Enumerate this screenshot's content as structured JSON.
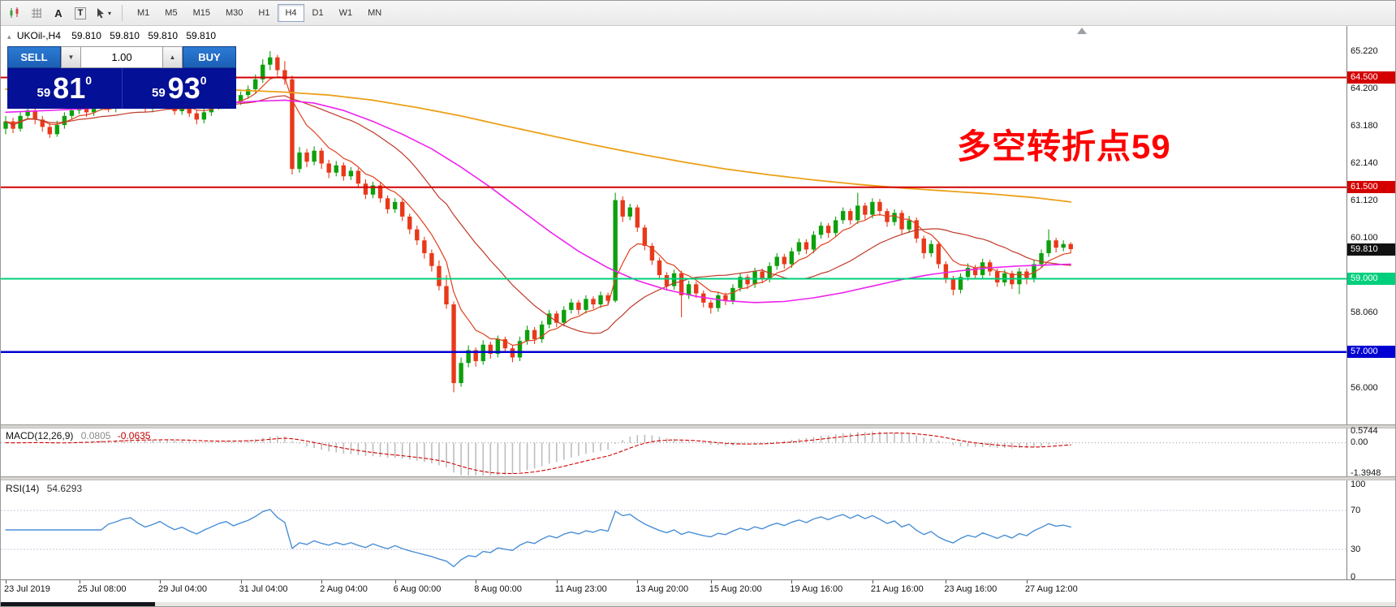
{
  "toolbar": {
    "text_tool_label": "A",
    "label_tool_label": "T",
    "caret": "▾",
    "timeframes": [
      "M1",
      "M5",
      "M15",
      "M30",
      "H1",
      "H4",
      "D1",
      "W1",
      "MN"
    ],
    "active_timeframe": "H4"
  },
  "chart": {
    "header": {
      "expand_icon": "▴",
      "symbol": "UKOil-,H4",
      "o": "59.810",
      "h": "59.810",
      "l": "59.810",
      "c": "59.810"
    },
    "trade_panel": {
      "sell_label": "SELL",
      "buy_label": "BUY",
      "volume": "1.00",
      "spin_down": "▼",
      "spin_up": "▲",
      "sell_price": {
        "big": "59",
        "large": "81",
        "sup": "0"
      },
      "buy_price": {
        "big": "59",
        "large": "93",
        "sup": "0"
      }
    },
    "annotation": {
      "text": "多空转折点59",
      "color": "#ff0000"
    },
    "colors": {
      "up": "#0da00d",
      "down": "#e8391a",
      "ma_orange": "#eca018",
      "ma_magenta": "#ee22ee",
      "ma_fast": "#e0401c",
      "ma_mid": "#c03828"
    },
    "hlines": [
      {
        "price": 64.5,
        "label": "64.500",
        "color": "#d40000",
        "width": 2
      },
      {
        "price": 61.5,
        "label": "61.500",
        "color": "#d40000",
        "width": 2
      },
      {
        "price": 59.0,
        "label": "59.000",
        "color": "#00cf7c",
        "width": 2
      },
      {
        "price": 57.0,
        "label": "57.000",
        "color": "#0000d2",
        "width": 2.5
      }
    ],
    "current_price": {
      "value": 59.81,
      "label": "59.810",
      "bg": "#111111"
    },
    "y_axis": [
      {
        "p": 65.22,
        "t": "65.220"
      },
      {
        "p": 64.2,
        "t": "64.200"
      },
      {
        "p": 63.18,
        "t": "63.180"
      },
      {
        "p": 62.14,
        "t": "62.140"
      },
      {
        "p": 61.12,
        "t": "61.120"
      },
      {
        "p": 60.1,
        "t": "60.100"
      },
      {
        "p": 58.06,
        "t": "58.060"
      },
      {
        "p": 56.0,
        "t": "56.000"
      }
    ],
    "view": {
      "price_top": 65.93,
      "price_bottom": 55.02
    },
    "candles": [
      [
        63.1,
        63.45,
        62.95,
        63.3
      ],
      [
        63.3,
        63.4,
        62.98,
        63.1
      ],
      [
        63.1,
        63.55,
        63.02,
        63.45
      ],
      [
        63.45,
        63.72,
        63.35,
        63.6
      ],
      [
        63.6,
        63.68,
        63.22,
        63.35
      ],
      [
        63.35,
        63.45,
        63.02,
        63.15
      ],
      [
        63.15,
        63.25,
        62.85,
        62.95
      ],
      [
        62.95,
        63.32,
        62.88,
        63.2
      ],
      [
        63.2,
        63.55,
        63.1,
        63.45
      ],
      [
        63.45,
        63.7,
        63.35,
        63.6
      ],
      [
        63.6,
        63.88,
        63.5,
        63.75
      ],
      [
        63.75,
        63.82,
        63.42,
        63.55
      ],
      [
        63.55,
        63.8,
        63.45,
        63.7
      ],
      [
        63.7,
        64.0,
        63.6,
        63.9
      ],
      [
        63.9,
        63.98,
        63.55,
        63.65
      ],
      [
        63.65,
        63.92,
        63.55,
        63.8
      ],
      [
        63.8,
        64.1,
        63.7,
        64.0
      ],
      [
        64.0,
        64.22,
        63.9,
        64.1
      ],
      [
        64.1,
        64.15,
        63.75,
        63.85
      ],
      [
        63.85,
        63.95,
        63.55,
        63.65
      ],
      [
        63.65,
        63.9,
        63.55,
        63.8
      ],
      [
        63.8,
        64.12,
        63.72,
        64.0
      ],
      [
        64.0,
        64.08,
        63.68,
        63.78
      ],
      [
        63.78,
        63.85,
        63.48,
        63.58
      ],
      [
        63.58,
        63.82,
        63.48,
        63.72
      ],
      [
        63.72,
        63.8,
        63.42,
        63.52
      ],
      [
        63.52,
        63.6,
        63.22,
        63.35
      ],
      [
        63.35,
        63.65,
        63.25,
        63.55
      ],
      [
        63.55,
        63.82,
        63.45,
        63.72
      ],
      [
        63.72,
        64.02,
        63.62,
        63.92
      ],
      [
        63.92,
        64.15,
        63.82,
        64.05
      ],
      [
        64.05,
        64.12,
        63.72,
        63.85
      ],
      [
        63.85,
        64.12,
        63.75,
        64.02
      ],
      [
        64.02,
        64.28,
        63.92,
        64.18
      ],
      [
        64.18,
        64.58,
        64.08,
        64.45
      ],
      [
        64.45,
        65.0,
        64.35,
        64.85
      ],
      [
        64.85,
        65.22,
        64.7,
        65.05
      ],
      [
        65.05,
        65.12,
        64.55,
        64.7
      ],
      [
        64.7,
        64.95,
        64.3,
        64.45
      ],
      [
        64.45,
        64.55,
        61.85,
        62.0
      ],
      [
        62.0,
        62.6,
        61.9,
        62.45
      ],
      [
        62.45,
        62.55,
        62.05,
        62.2
      ],
      [
        62.2,
        62.62,
        62.1,
        62.5
      ],
      [
        62.5,
        62.58,
        62.0,
        62.15
      ],
      [
        62.15,
        62.25,
        61.75,
        61.9
      ],
      [
        61.9,
        62.22,
        61.8,
        62.1
      ],
      [
        62.1,
        62.18,
        61.68,
        61.8
      ],
      [
        61.8,
        62.05,
        61.7,
        61.95
      ],
      [
        61.95,
        62.02,
        61.48,
        61.6
      ],
      [
        61.6,
        61.72,
        61.18,
        61.3
      ],
      [
        61.3,
        61.65,
        61.2,
        61.55
      ],
      [
        61.55,
        61.62,
        61.08,
        61.2
      ],
      [
        61.2,
        61.28,
        60.78,
        60.9
      ],
      [
        60.9,
        61.2,
        60.8,
        61.1
      ],
      [
        61.1,
        61.18,
        60.58,
        60.7
      ],
      [
        60.7,
        60.78,
        60.22,
        60.35
      ],
      [
        60.35,
        60.45,
        59.92,
        60.05
      ],
      [
        60.05,
        60.15,
        59.55,
        59.7
      ],
      [
        59.7,
        59.8,
        59.2,
        59.35
      ],
      [
        59.35,
        59.5,
        58.68,
        58.8
      ],
      [
        58.8,
        59.1,
        58.18,
        58.3
      ],
      [
        58.3,
        58.38,
        55.9,
        56.15
      ],
      [
        56.15,
        56.85,
        56.05,
        56.7
      ],
      [
        56.7,
        57.18,
        56.58,
        57.05
      ],
      [
        57.05,
        57.12,
        56.6,
        56.75
      ],
      [
        56.75,
        57.32,
        56.65,
        57.2
      ],
      [
        57.2,
        57.28,
        56.82,
        56.95
      ],
      [
        56.95,
        57.45,
        56.85,
        57.35
      ],
      [
        57.35,
        57.42,
        57.0,
        57.1
      ],
      [
        57.1,
        57.18,
        56.72,
        56.85
      ],
      [
        56.85,
        57.42,
        56.75,
        57.3
      ],
      [
        57.3,
        57.72,
        57.2,
        57.6
      ],
      [
        57.6,
        57.68,
        57.22,
        57.35
      ],
      [
        57.35,
        57.85,
        57.25,
        57.75
      ],
      [
        57.75,
        58.15,
        57.65,
        58.05
      ],
      [
        58.05,
        58.12,
        57.68,
        57.8
      ],
      [
        57.8,
        58.25,
        57.7,
        58.15
      ],
      [
        58.15,
        58.45,
        58.05,
        58.35
      ],
      [
        58.35,
        58.42,
        58.02,
        58.15
      ],
      [
        58.15,
        58.55,
        58.05,
        58.45
      ],
      [
        58.45,
        58.52,
        58.18,
        58.3
      ],
      [
        58.3,
        58.65,
        58.2,
        58.55
      ],
      [
        58.55,
        58.62,
        58.28,
        58.4
      ],
      [
        58.4,
        61.35,
        58.35,
        61.15
      ],
      [
        61.15,
        61.25,
        60.55,
        60.7
      ],
      [
        60.7,
        61.05,
        60.6,
        60.95
      ],
      [
        60.95,
        61.02,
        60.28,
        60.4
      ],
      [
        60.4,
        60.48,
        59.78,
        59.9
      ],
      [
        59.9,
        59.98,
        59.38,
        59.5
      ],
      [
        59.5,
        59.58,
        58.98,
        59.1
      ],
      [
        59.1,
        59.18,
        58.68,
        58.8
      ],
      [
        58.8,
        59.25,
        58.7,
        59.15
      ],
      [
        59.15,
        59.22,
        57.95,
        58.55
      ],
      [
        58.55,
        58.95,
        58.45,
        58.85
      ],
      [
        58.85,
        58.92,
        58.48,
        58.6
      ],
      [
        58.6,
        58.68,
        58.22,
        58.35
      ],
      [
        58.35,
        58.42,
        58.05,
        58.2
      ],
      [
        58.2,
        58.65,
        58.1,
        58.55
      ],
      [
        58.55,
        58.62,
        58.28,
        58.4
      ],
      [
        58.4,
        58.85,
        58.3,
        58.75
      ],
      [
        58.75,
        59.15,
        58.65,
        59.05
      ],
      [
        59.05,
        59.12,
        58.72,
        58.85
      ],
      [
        58.85,
        59.3,
        58.75,
        59.2
      ],
      [
        59.2,
        59.28,
        58.88,
        59.0
      ],
      [
        59.0,
        59.45,
        58.9,
        59.35
      ],
      [
        59.35,
        59.7,
        59.25,
        59.6
      ],
      [
        59.6,
        59.68,
        59.28,
        59.4
      ],
      [
        59.4,
        59.85,
        59.3,
        59.75
      ],
      [
        59.75,
        60.1,
        59.65,
        60.0
      ],
      [
        60.0,
        60.08,
        59.68,
        59.8
      ],
      [
        59.8,
        60.3,
        59.7,
        60.2
      ],
      [
        60.2,
        60.55,
        60.1,
        60.45
      ],
      [
        60.45,
        60.52,
        60.12,
        60.25
      ],
      [
        60.25,
        60.7,
        60.15,
        60.6
      ],
      [
        60.6,
        60.95,
        60.5,
        60.85
      ],
      [
        60.85,
        60.92,
        60.48,
        60.6
      ],
      [
        60.6,
        61.35,
        60.5,
        61.0
      ],
      [
        61.0,
        61.08,
        60.62,
        60.75
      ],
      [
        60.75,
        61.2,
        60.65,
        61.1
      ],
      [
        61.1,
        61.18,
        60.72,
        60.85
      ],
      [
        60.85,
        60.92,
        60.42,
        60.55
      ],
      [
        60.55,
        60.9,
        60.45,
        60.8
      ],
      [
        60.8,
        60.88,
        60.22,
        60.35
      ],
      [
        60.35,
        60.72,
        60.25,
        60.6
      ],
      [
        60.6,
        60.68,
        59.98,
        60.1
      ],
      [
        60.1,
        60.18,
        59.55,
        59.7
      ],
      [
        59.7,
        60.05,
        59.6,
        59.95
      ],
      [
        59.95,
        60.02,
        59.28,
        59.4
      ],
      [
        59.4,
        59.48,
        58.88,
        59.0
      ],
      [
        59.0,
        59.08,
        58.55,
        58.7
      ],
      [
        58.7,
        59.15,
        58.6,
        59.05
      ],
      [
        59.05,
        59.42,
        58.95,
        59.3
      ],
      [
        59.3,
        59.38,
        58.98,
        59.1
      ],
      [
        59.1,
        59.55,
        59.0,
        59.45
      ],
      [
        59.45,
        59.52,
        59.08,
        59.2
      ],
      [
        59.2,
        59.28,
        58.78,
        58.9
      ],
      [
        58.9,
        59.25,
        58.8,
        59.15
      ],
      [
        59.15,
        59.22,
        58.72,
        58.85
      ],
      [
        58.85,
        59.3,
        58.58,
        59.2
      ],
      [
        59.2,
        59.28,
        58.85,
        59.0
      ],
      [
        59.0,
        59.5,
        58.9,
        59.4
      ],
      [
        59.4,
        59.8,
        59.3,
        59.7
      ],
      [
        59.7,
        60.35,
        59.6,
        60.05
      ],
      [
        60.05,
        60.12,
        59.72,
        59.85
      ],
      [
        59.85,
        60.05,
        59.75,
        59.95
      ],
      [
        59.95,
        60.0,
        59.7,
        59.81
      ]
    ],
    "ma_orange": [
      [
        0,
        64.18
      ],
      [
        8,
        64.22
      ],
      [
        16,
        64.25
      ],
      [
        24,
        64.22
      ],
      [
        32,
        64.15
      ],
      [
        38,
        64.1
      ],
      [
        44,
        64.02
      ],
      [
        50,
        63.88
      ],
      [
        56,
        63.68
      ],
      [
        62,
        63.45
      ],
      [
        68,
        63.18
      ],
      [
        74,
        62.92
      ],
      [
        80,
        62.66
      ],
      [
        86,
        62.42
      ],
      [
        92,
        62.2
      ],
      [
        98,
        62.0
      ],
      [
        104,
        61.84
      ],
      [
        110,
        61.7
      ],
      [
        116,
        61.58
      ],
      [
        122,
        61.48
      ],
      [
        128,
        61.4
      ],
      [
        134,
        61.32
      ],
      [
        140,
        61.22
      ],
      [
        145,
        61.1
      ]
    ],
    "ma_magenta": [
      [
        0,
        63.55
      ],
      [
        6,
        63.6
      ],
      [
        12,
        63.66
      ],
      [
        18,
        63.72
      ],
      [
        24,
        63.76
      ],
      [
        30,
        63.8
      ],
      [
        34,
        63.85
      ],
      [
        38,
        63.88
      ],
      [
        42,
        63.8
      ],
      [
        46,
        63.6
      ],
      [
        50,
        63.3
      ],
      [
        54,
        62.95
      ],
      [
        58,
        62.55
      ],
      [
        62,
        62.05
      ],
      [
        66,
        61.5
      ],
      [
        70,
        60.9
      ],
      [
        74,
        60.3
      ],
      [
        78,
        59.75
      ],
      [
        82,
        59.3
      ],
      [
        86,
        58.95
      ],
      [
        90,
        58.7
      ],
      [
        94,
        58.52
      ],
      [
        98,
        58.4
      ],
      [
        102,
        58.35
      ],
      [
        106,
        58.38
      ],
      [
        110,
        58.48
      ],
      [
        114,
        58.62
      ],
      [
        118,
        58.8
      ],
      [
        122,
        58.98
      ],
      [
        126,
        59.12
      ],
      [
        130,
        59.22
      ],
      [
        134,
        59.3
      ],
      [
        138,
        59.35
      ],
      [
        145,
        59.4
      ]
    ]
  },
  "macd": {
    "name": "MACD(12,26,9)",
    "value_main": "0.0805",
    "value_signal": "-0.0635",
    "params": {
      "fast": 12,
      "slow": 26,
      "signal": 9
    },
    "range": {
      "max": 0.64,
      "min": -1.47
    },
    "axis": [
      {
        "v": 0.5744,
        "t": "0.5744"
      },
      {
        "v": 0,
        "t": "0.00"
      },
      {
        "v": -1.3948,
        "t": "-1.3948"
      }
    ],
    "colors": {
      "hist": "#bdbdbd",
      "signal": "#d40000"
    }
  },
  "rsi": {
    "name": "RSI(14)",
    "value": "54.6293",
    "period": 14,
    "color": "#4a8fd5",
    "levels": [
      70,
      30
    ],
    "axis": [
      {
        "v": 100,
        "t": "100"
      },
      {
        "v": 70,
        "t": "70"
      },
      {
        "v": 30,
        "t": "30"
      },
      {
        "v": 0,
        "t": "0"
      }
    ]
  },
  "time_axis": {
    "labels": [
      {
        "t": "23 Jul 2019",
        "bar": 0
      },
      {
        "t": "25 Jul 08:00",
        "bar": 10
      },
      {
        "t": "29 Jul 04:00",
        "bar": 21
      },
      {
        "t": "31 Jul 04:00",
        "bar": 32
      },
      {
        "t": "2 Aug 04:00",
        "bar": 43
      },
      {
        "t": "6 Aug 00:00",
        "bar": 53
      },
      {
        "t": "8 Aug 00:00",
        "bar": 64
      },
      {
        "t": "11 Aug 23:00",
        "bar": 75
      },
      {
        "t": "13 Aug 20:00",
        "bar": 86
      },
      {
        "t": "15 Aug 20:00",
        "bar": 96
      },
      {
        "t": "19 Aug 16:00",
        "bar": 107
      },
      {
        "t": "21 Aug 16:00",
        "bar": 118
      },
      {
        "t": "23 Aug 16:00",
        "bar": 128
      },
      {
        "t": "27 Aug 12:00",
        "bar": 139
      }
    ]
  }
}
